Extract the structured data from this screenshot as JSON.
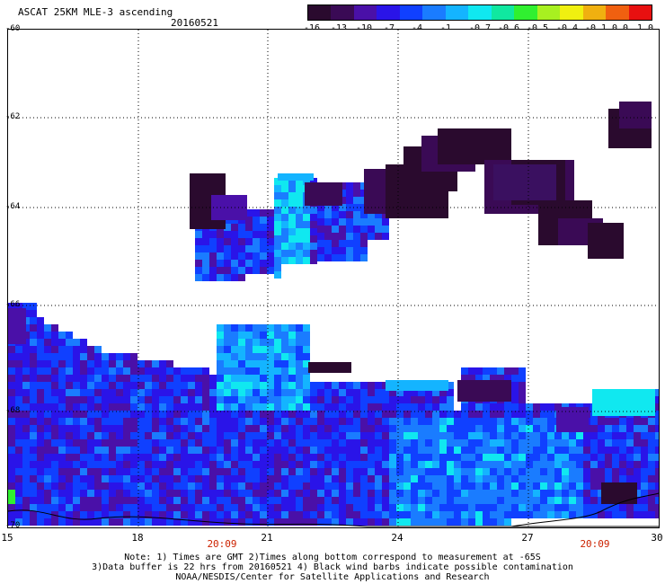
{
  "header": {
    "title": "ASCAT 25KM MLE-3 ascending",
    "date": "20160521"
  },
  "colorbar": {
    "colors": [
      "#2a0a2e",
      "#3a0a55",
      "#4a10a8",
      "#2a14e8",
      "#1040ff",
      "#1a7cff",
      "#14b4ff",
      "#10e8f0",
      "#10e8a0",
      "#30f030",
      "#a8f020",
      "#f0f010",
      "#f0b010",
      "#f06010",
      "#e81010"
    ],
    "tick_labels": [
      "-16",
      "-13",
      "-10",
      "-7",
      "-4",
      "-1",
      "-0.7",
      "-0.6",
      "-0.5",
      "-0.4",
      "-0.1",
      "0.0",
      "1.0"
    ]
  },
  "map": {
    "lat_labels": [
      "-60",
      "-62",
      "-64",
      "-66",
      "-68",
      "-70"
    ],
    "lon_labels": [
      "15",
      "18",
      "21",
      "24",
      "27",
      "30"
    ],
    "time_labels": [
      "20:09",
      "20:09"
    ],
    "grid": true
  },
  "notes": {
    "line1": "Note: 1) Times are GMT 2)Times along bottom correspond to measurement at -65S",
    "line2": "3)Data buffer is 22 hrs from 20160521 4) Black wind barbs indicate possible contamination",
    "line3": "NOAA/NESDIS/Center for Satellite Applications and Research"
  }
}
